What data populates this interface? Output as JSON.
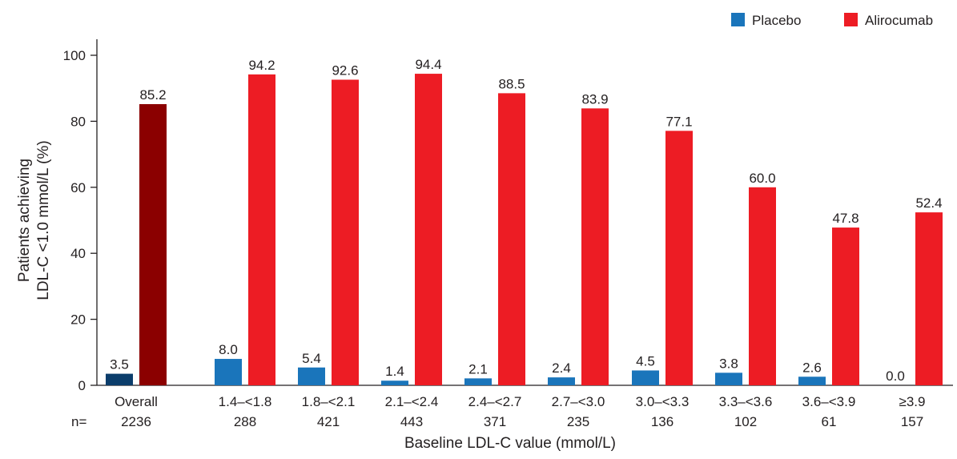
{
  "chart_data": {
    "type": "bar",
    "xlabel": "Baseline LDL-C value (mmol/L)",
    "ylabel_lines": [
      "Patients achieving",
      "LDL-C <1.0 mmol/L (%)"
    ],
    "ylim": [
      0,
      100
    ],
    "yticks": [
      "0",
      "20",
      "40",
      "60",
      "80",
      "100"
    ],
    "grid": false,
    "legend_position": "top-right",
    "n_prefix": "n=",
    "categories": [
      "Overall",
      "1.4–<1.8",
      "1.8–<2.1",
      "2.1–<2.4",
      "2.4–<2.7",
      "2.7–<3.0",
      "3.0–<3.3",
      "3.3–<3.6",
      "3.6–<3.9",
      "≥3.9"
    ],
    "n_values": [
      "2236",
      "288",
      "421",
      "443",
      "371",
      "235",
      "136",
      "102",
      "61",
      "157"
    ],
    "series": [
      {
        "name": "Placebo",
        "color": "#1a75bb",
        "overall_color": "#0b3d6b",
        "values": [
          3.5,
          8.0,
          5.4,
          1.4,
          2.1,
          2.4,
          4.5,
          3.8,
          2.6,
          0.0
        ],
        "labels": [
          "3.5",
          "8.0",
          "5.4",
          "1.4",
          "2.1",
          "2.4",
          "4.5",
          "3.8",
          "2.6",
          "0.0"
        ]
      },
      {
        "name": "Alirocumab",
        "color": "#ed1c24",
        "overall_color": "#8b0000",
        "values": [
          85.2,
          94.2,
          92.6,
          94.4,
          88.5,
          83.9,
          77.1,
          60.0,
          47.8,
          52.4
        ],
        "labels": [
          "85.2",
          "94.2",
          "92.6",
          "94.4",
          "88.5",
          "83.9",
          "77.1",
          "60.0",
          "47.8",
          "52.4"
        ]
      }
    ]
  }
}
